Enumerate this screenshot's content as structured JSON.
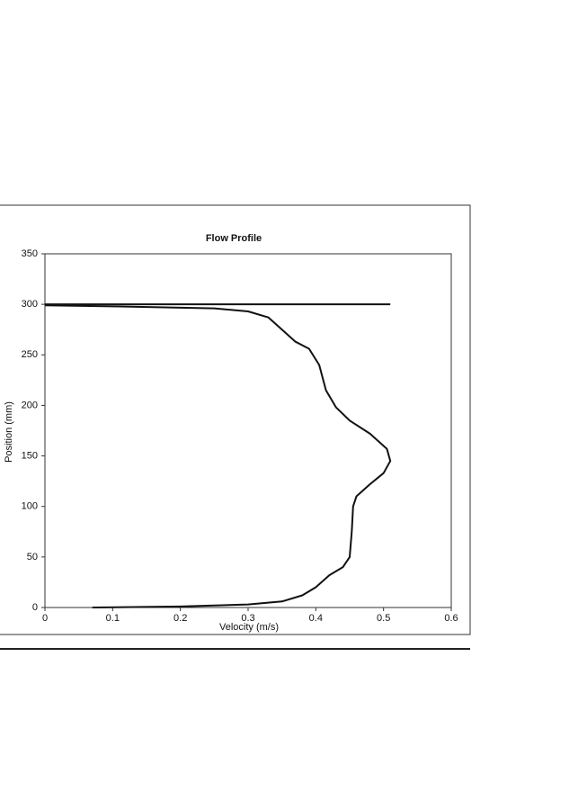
{
  "chart_data": {
    "type": "line",
    "title": "Flow Profile",
    "x_label": "Velocity (m/s)",
    "y_label": "Position (mm)",
    "xlim": [
      0,
      0.6
    ],
    "xticks": [
      0,
      0.1,
      0.2,
      0.3,
      0.4,
      0.5,
      0.6
    ],
    "ylim": [
      0,
      350
    ],
    "yticks": [
      0,
      50,
      100,
      150,
      200,
      250,
      300,
      350
    ],
    "series": [
      {
        "color": "#111111",
        "x": [
          0.07,
          0.2,
          0.3,
          0.35,
          0.38,
          0.4,
          0.42,
          0.44,
          0.45,
          0.453,
          0.455,
          0.46,
          0.48,
          0.5,
          0.51,
          0.505,
          0.48,
          0.45,
          0.43,
          0.415,
          0.405,
          0.39,
          0.37,
          0.35,
          0.33,
          0.3,
          0.25,
          0.1,
          0
        ],
        "values": [
          0,
          1,
          3,
          6,
          12,
          20,
          32,
          40,
          50,
          75,
          100,
          110,
          122,
          133,
          145,
          157,
          172,
          185,
          198,
          215,
          240,
          256,
          263,
          275,
          287,
          293,
          296,
          298,
          299
        ]
      },
      {
        "color": "#111111",
        "x": [
          0,
          0.51
        ],
        "values": [
          300,
          300
        ]
      }
    ]
  }
}
